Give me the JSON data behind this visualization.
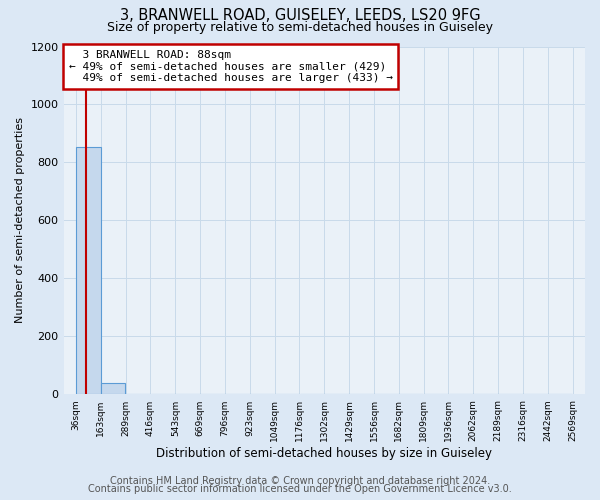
{
  "title": "3, BRANWELL ROAD, GUISELEY, LEEDS, LS20 9FG",
  "subtitle": "Size of property relative to semi-detached houses in Guiseley",
  "xlabel": "Distribution of semi-detached houses by size in Guiseley",
  "ylabel": "Number of semi-detached properties",
  "bar_edges": [
    36,
    163,
    289,
    416,
    543,
    669,
    796,
    923,
    1049,
    1176,
    1302,
    1429,
    1556,
    1682,
    1809,
    1936,
    2062,
    2189,
    2316,
    2442,
    2569
  ],
  "bar_heights": [
    855,
    38,
    0,
    0,
    0,
    0,
    0,
    0,
    0,
    0,
    0,
    0,
    0,
    0,
    0,
    0,
    0,
    0,
    0,
    0
  ],
  "property_value": 88,
  "property_label": "3 BRANWELL ROAD: 88sqm",
  "pct_smaller": 49,
  "pct_larger": 49,
  "count_smaller": 429,
  "count_larger": 433,
  "bar_color": "#c5d8ed",
  "bar_edge_color": "#5b9bd5",
  "property_line_color": "#c00000",
  "annotation_box_edge_color": "#c00000",
  "ylim": [
    0,
    1200
  ],
  "yticks": [
    0,
    200,
    400,
    600,
    800,
    1000,
    1200
  ],
  "xtick_labels": [
    "36sqm",
    "163sqm",
    "289sqm",
    "416sqm",
    "543sqm",
    "669sqm",
    "796sqm",
    "923sqm",
    "1049sqm",
    "1176sqm",
    "1302sqm",
    "1429sqm",
    "1556sqm",
    "1682sqm",
    "1809sqm",
    "1936sqm",
    "2062sqm",
    "2189sqm",
    "2316sqm",
    "2442sqm",
    "2569sqm"
  ],
  "grid_color": "#c8daea",
  "background_color": "#dce8f5",
  "plot_bg_color": "#eaf1f8",
  "footer_line1": "Contains HM Land Registry data © Crown copyright and database right 2024.",
  "footer_line2": "Contains public sector information licensed under the Open Government Licence v3.0.",
  "title_fontsize": 10.5,
  "subtitle_fontsize": 9,
  "annotation_fontsize": 8,
  "footer_fontsize": 7
}
